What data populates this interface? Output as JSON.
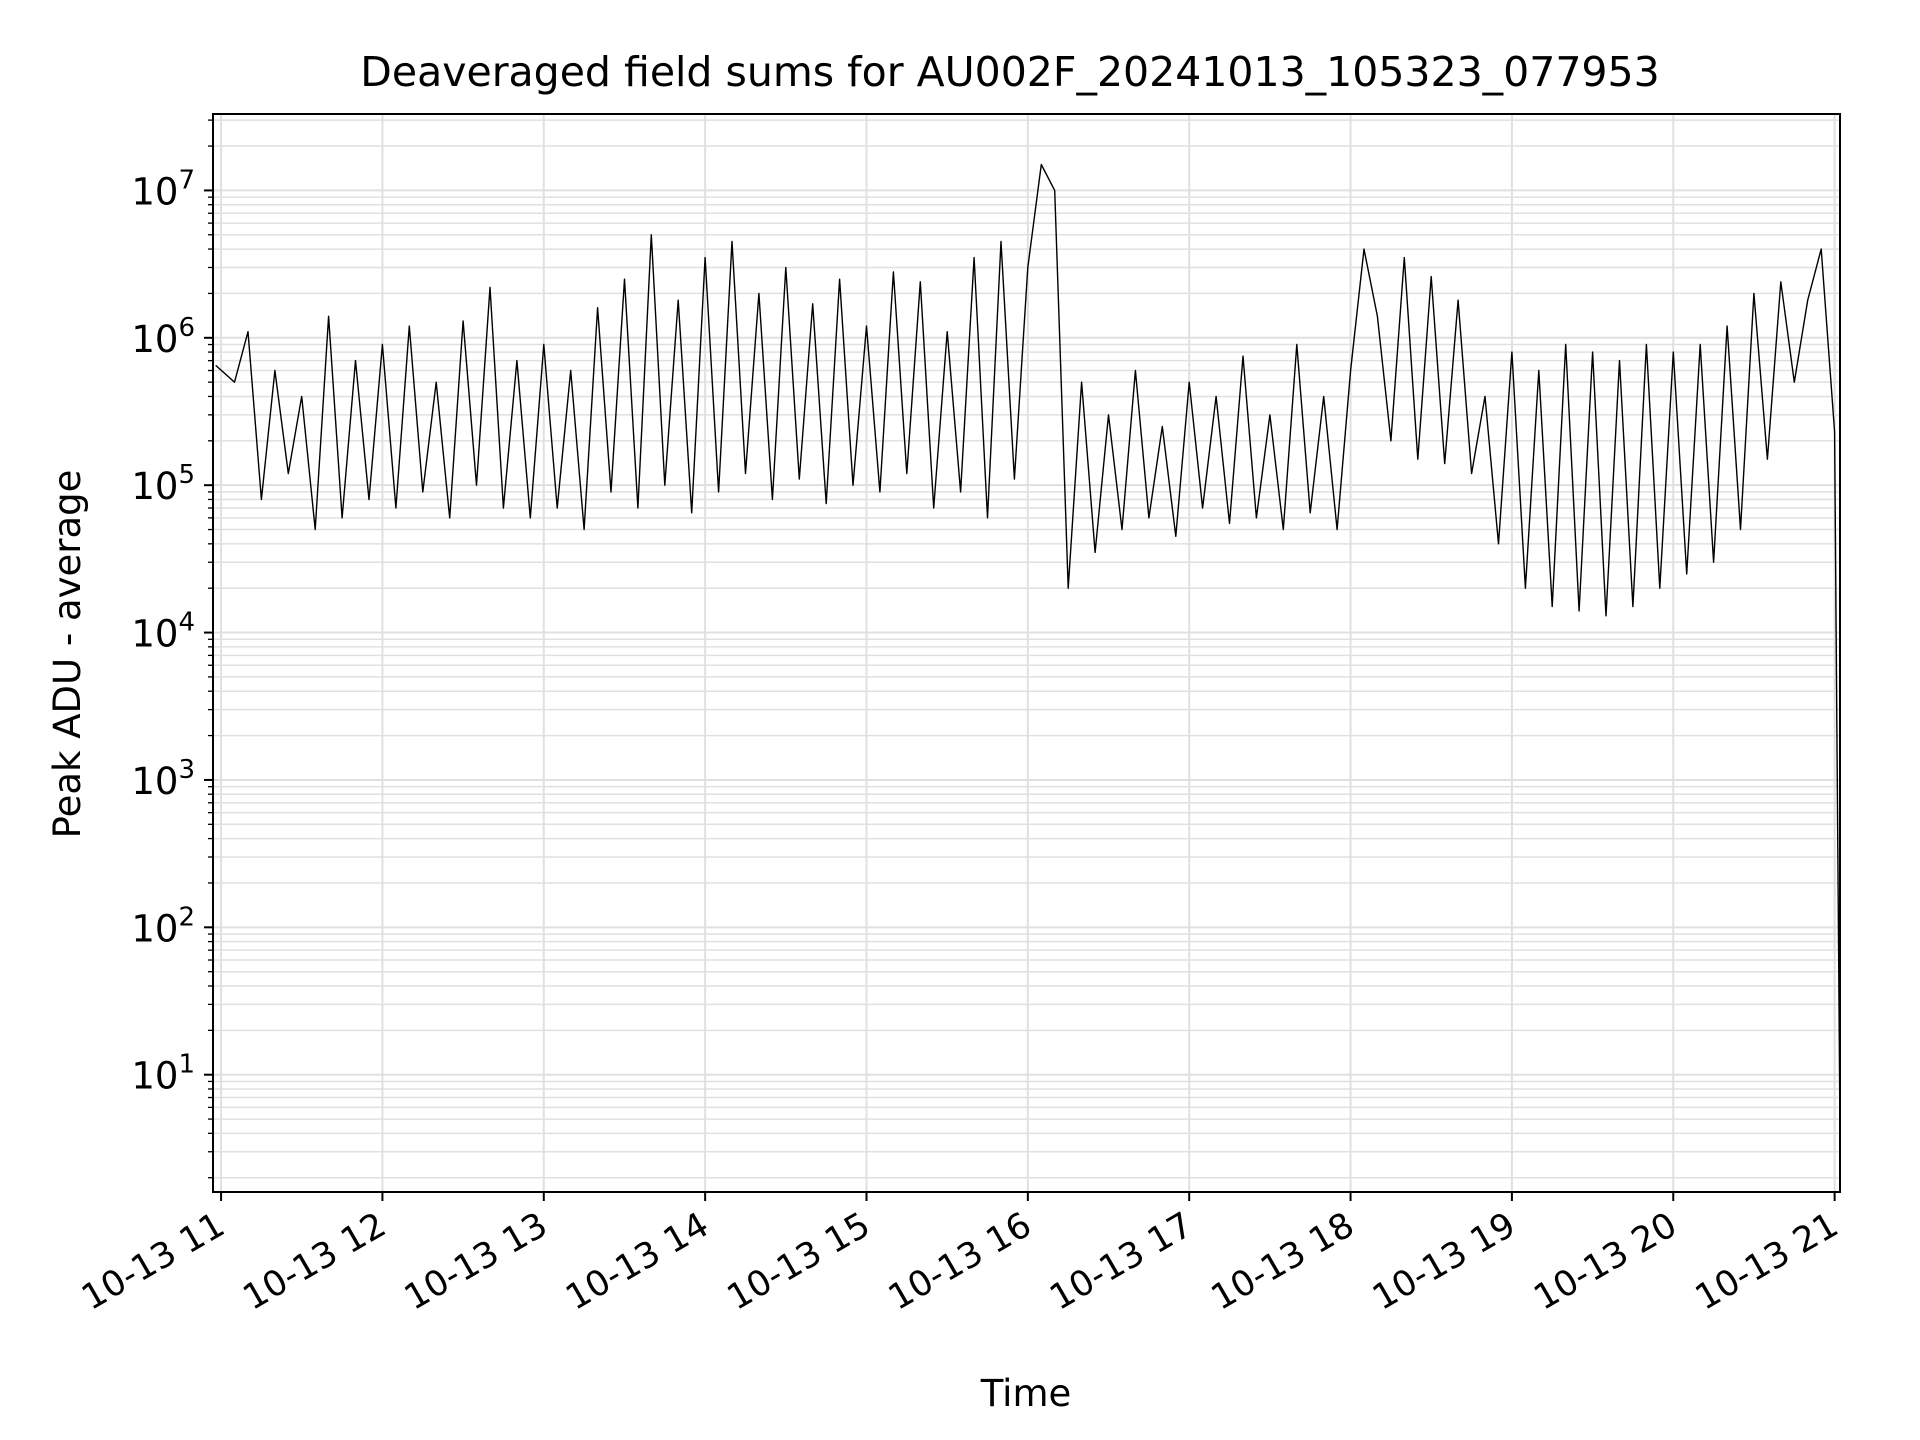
{
  "chart_data": {
    "type": "line",
    "title": "Deaveraged field sums for AU002F_20241013_105323_077953",
    "xlabel": "Time",
    "ylabel": "Peak ADU - average",
    "yscale": "log",
    "ylim": [
      1.6,
      33000000
    ],
    "xlim": [
      "2024-10-13T10:57",
      "2024-10-13T21:02"
    ],
    "grid": true,
    "line_color": "#000000",
    "grid_color": "#e0e0e0",
    "x_ticks": [
      "2024-10-13T11:00",
      "2024-10-13T12:00",
      "2024-10-13T13:00",
      "2024-10-13T14:00",
      "2024-10-13T15:00",
      "2024-10-13T16:00",
      "2024-10-13T17:00",
      "2024-10-13T18:00",
      "2024-10-13T19:00",
      "2024-10-13T20:00",
      "2024-10-13T21:00"
    ],
    "x_tick_labels": [
      "10-13 11",
      "10-13 12",
      "10-13 13",
      "10-13 14",
      "10-13 15",
      "10-13 16",
      "10-13 17",
      "10-13 18",
      "10-13 19",
      "10-13 20",
      "10-13 21"
    ],
    "y_ticks": [
      {
        "value": 10,
        "base": "10",
        "exp": "1"
      },
      {
        "value": 100,
        "base": "10",
        "exp": "2"
      },
      {
        "value": 1000,
        "base": "10",
        "exp": "3"
      },
      {
        "value": 10000,
        "base": "10",
        "exp": "4"
      },
      {
        "value": 100000,
        "base": "10",
        "exp": "5"
      },
      {
        "value": 1000000,
        "base": "10",
        "exp": "6"
      },
      {
        "value": 10000000,
        "base": "10",
        "exp": "7"
      }
    ],
    "series": [
      {
        "x": [
          "2024-10-13T10:58",
          "2024-10-13T11:05",
          "2024-10-13T11:10",
          "2024-10-13T11:15",
          "2024-10-13T11:20",
          "2024-10-13T11:25",
          "2024-10-13T11:30",
          "2024-10-13T11:35",
          "2024-10-13T11:40",
          "2024-10-13T11:45",
          "2024-10-13T11:50",
          "2024-10-13T11:55",
          "2024-10-13T12:00",
          "2024-10-13T12:05",
          "2024-10-13T12:10",
          "2024-10-13T12:15",
          "2024-10-13T12:20",
          "2024-10-13T12:25",
          "2024-10-13T12:30",
          "2024-10-13T12:35",
          "2024-10-13T12:40",
          "2024-10-13T12:45",
          "2024-10-13T12:50",
          "2024-10-13T12:55",
          "2024-10-13T13:00",
          "2024-10-13T13:05",
          "2024-10-13T13:10",
          "2024-10-13T13:15",
          "2024-10-13T13:20",
          "2024-10-13T13:25",
          "2024-10-13T13:30",
          "2024-10-13T13:35",
          "2024-10-13T13:40",
          "2024-10-13T13:45",
          "2024-10-13T13:50",
          "2024-10-13T13:55",
          "2024-10-13T14:00",
          "2024-10-13T14:05",
          "2024-10-13T14:10",
          "2024-10-13T14:15",
          "2024-10-13T14:20",
          "2024-10-13T14:25",
          "2024-10-13T14:30",
          "2024-10-13T14:35",
          "2024-10-13T14:40",
          "2024-10-13T14:45",
          "2024-10-13T14:50",
          "2024-10-13T14:55",
          "2024-10-13T15:00",
          "2024-10-13T15:05",
          "2024-10-13T15:10",
          "2024-10-13T15:15",
          "2024-10-13T15:20",
          "2024-10-13T15:25",
          "2024-10-13T15:30",
          "2024-10-13T15:35",
          "2024-10-13T15:40",
          "2024-10-13T15:45",
          "2024-10-13T15:50",
          "2024-10-13T15:55",
          "2024-10-13T16:00",
          "2024-10-13T16:05",
          "2024-10-13T16:10",
          "2024-10-13T16:15",
          "2024-10-13T16:20",
          "2024-10-13T16:25",
          "2024-10-13T16:30",
          "2024-10-13T16:35",
          "2024-10-13T16:40",
          "2024-10-13T16:45",
          "2024-10-13T16:50",
          "2024-10-13T16:55",
          "2024-10-13T17:00",
          "2024-10-13T17:05",
          "2024-10-13T17:10",
          "2024-10-13T17:15",
          "2024-10-13T17:20",
          "2024-10-13T17:25",
          "2024-10-13T17:30",
          "2024-10-13T17:35",
          "2024-10-13T17:40",
          "2024-10-13T17:45",
          "2024-10-13T17:50",
          "2024-10-13T17:55",
          "2024-10-13T18:00",
          "2024-10-13T18:05",
          "2024-10-13T18:10",
          "2024-10-13T18:15",
          "2024-10-13T18:20",
          "2024-10-13T18:25",
          "2024-10-13T18:30",
          "2024-10-13T18:35",
          "2024-10-13T18:40",
          "2024-10-13T18:45",
          "2024-10-13T18:50",
          "2024-10-13T18:55",
          "2024-10-13T19:00",
          "2024-10-13T19:05",
          "2024-10-13T19:10",
          "2024-10-13T19:15",
          "2024-10-13T19:20",
          "2024-10-13T19:25",
          "2024-10-13T19:30",
          "2024-10-13T19:35",
          "2024-10-13T19:40",
          "2024-10-13T19:45",
          "2024-10-13T19:50",
          "2024-10-13T19:55",
          "2024-10-13T20:00",
          "2024-10-13T20:05",
          "2024-10-13T20:10",
          "2024-10-13T20:15",
          "2024-10-13T20:20",
          "2024-10-13T20:25",
          "2024-10-13T20:30",
          "2024-10-13T20:35",
          "2024-10-13T20:40",
          "2024-10-13T20:45",
          "2024-10-13T20:50",
          "2024-10-13T20:55",
          "2024-10-13T21:00",
          "2024-10-13T21:02"
        ],
        "y": [
          650000,
          500000,
          1100000,
          80000,
          600000,
          120000,
          400000,
          50000,
          1400000,
          60000,
          700000,
          80000,
          900000,
          70000,
          1200000,
          90000,
          500000,
          60000,
          1300000,
          100000,
          2200000,
          70000,
          700000,
          60000,
          900000,
          70000,
          600000,
          50000,
          1600000,
          90000,
          2500000,
          70000,
          5000000,
          100000,
          1800000,
          65000,
          3500000,
          90000,
          4500000,
          120000,
          2000000,
          80000,
          3000000,
          110000,
          1700000,
          75000,
          2500000,
          100000,
          1200000,
          90000,
          2800000,
          120000,
          2400000,
          70000,
          1100000,
          90000,
          3500000,
          60000,
          4500000,
          110000,
          3000000,
          15000000,
          10000000,
          20000,
          500000,
          35000,
          300000,
          50000,
          600000,
          60000,
          250000,
          45000,
          500000,
          70000,
          400000,
          55000,
          750000,
          60000,
          300000,
          50000,
          900000,
          65000,
          400000,
          50000,
          600000,
          4000000,
          1400000,
          200000,
          3500000,
          150000,
          2600000,
          140000,
          1800000,
          120000,
          400000,
          40000,
          800000,
          20000,
          600000,
          15000,
          900000,
          14000,
          800000,
          13000,
          700000,
          15000,
          900000,
          20000,
          800000,
          25000,
          900000,
          30000,
          1200000,
          50000,
          2000000,
          150000,
          2400000,
          500000,
          1800000,
          4000000,
          230000,
          4
        ]
      }
    ]
  }
}
